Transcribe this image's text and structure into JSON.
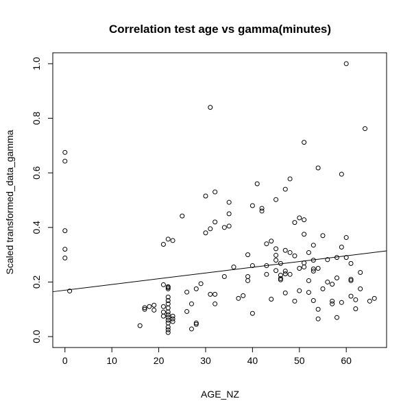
{
  "chart_data": {
    "type": "scatter",
    "title": "Correlation test age vs gamma(minutes)",
    "xlabel": "AGE_NZ",
    "ylabel": "Scaled transformed_data_gamma",
    "xlim": [
      -2.6,
      68.6
    ],
    "ylim": [
      -0.04,
      1.04
    ],
    "x_ticks": [
      0,
      10,
      20,
      30,
      40,
      50,
      60
    ],
    "y_ticks": [
      0.0,
      0.2,
      0.4,
      0.6,
      0.8,
      1.0
    ],
    "y_tick_labels": [
      "0.0",
      "0.2",
      "0.4",
      "0.6",
      "0.8",
      "1.0"
    ],
    "grid": false,
    "point_shape": "open-circle",
    "regression_line": {
      "intercept": 0.17,
      "slope": 0.0021
    },
    "points": [
      [
        0,
        0.675
      ],
      [
        0,
        0.643
      ],
      [
        0,
        0.388
      ],
      [
        0,
        0.32
      ],
      [
        0,
        0.288
      ],
      [
        1,
        0.167
      ],
      [
        16,
        0.04
      ],
      [
        17,
        0.106
      ],
      [
        17,
        0.1
      ],
      [
        18,
        0.11
      ],
      [
        19,
        0.115
      ],
      [
        19,
        0.097
      ],
      [
        21,
        0.338
      ],
      [
        21,
        0.19
      ],
      [
        21,
        0.11
      ],
      [
        21,
        0.09
      ],
      [
        21,
        0.075
      ],
      [
        22,
        0.357
      ],
      [
        22,
        0.183
      ],
      [
        22,
        0.18
      ],
      [
        22,
        0.175
      ],
      [
        22,
        0.145
      ],
      [
        22,
        0.132
      ],
      [
        22,
        0.12
      ],
      [
        22,
        0.105
      ],
      [
        22,
        0.09
      ],
      [
        22,
        0.08
      ],
      [
        22,
        0.07
      ],
      [
        22,
        0.06
      ],
      [
        22,
        0.05
      ],
      [
        22,
        0.035
      ],
      [
        22,
        0.025
      ],
      [
        22,
        0.015
      ],
      [
        23,
        0.352
      ],
      [
        23,
        0.075
      ],
      [
        23,
        0.065
      ],
      [
        23,
        0.055
      ],
      [
        25,
        0.442
      ],
      [
        26,
        0.163
      ],
      [
        26,
        0.092
      ],
      [
        27,
        0.12
      ],
      [
        27,
        0.028
      ],
      [
        28,
        0.175
      ],
      [
        28,
        0.05
      ],
      [
        28,
        0.045
      ],
      [
        29,
        0.194
      ],
      [
        30,
        0.515
      ],
      [
        30,
        0.38
      ],
      [
        31,
        0.84
      ],
      [
        31,
        0.395
      ],
      [
        31,
        0.155
      ],
      [
        32,
        0.53
      ],
      [
        32,
        0.42
      ],
      [
        32,
        0.155
      ],
      [
        32,
        0.12
      ],
      [
        34,
        0.4
      ],
      [
        34,
        0.22
      ],
      [
        35,
        0.492
      ],
      [
        35,
        0.45
      ],
      [
        35,
        0.405
      ],
      [
        36,
        0.255
      ],
      [
        37,
        0.14
      ],
      [
        38,
        0.15
      ],
      [
        39,
        0.3
      ],
      [
        39,
        0.22
      ],
      [
        39,
        0.205
      ],
      [
        40,
        0.48
      ],
      [
        40,
        0.26
      ],
      [
        40,
        0.085
      ],
      [
        41,
        0.56
      ],
      [
        42,
        0.47
      ],
      [
        42,
        0.46
      ],
      [
        43,
        0.34
      ],
      [
        43,
        0.26
      ],
      [
        43,
        0.228
      ],
      [
        44,
        0.35
      ],
      [
        44,
        0.137
      ],
      [
        45,
        0.502
      ],
      [
        45,
        0.322
      ],
      [
        45,
        0.298
      ],
      [
        45,
        0.28
      ],
      [
        45,
        0.242
      ],
      [
        46,
        0.268
      ],
      [
        46,
        0.225
      ],
      [
        46,
        0.213
      ],
      [
        46,
        0.208
      ],
      [
        47,
        0.54
      ],
      [
        47,
        0.316
      ],
      [
        47,
        0.24
      ],
      [
        47,
        0.23
      ],
      [
        47,
        0.16
      ],
      [
        48,
        0.578
      ],
      [
        48,
        0.308
      ],
      [
        48,
        0.228
      ],
      [
        49,
        0.418
      ],
      [
        49,
        0.296
      ],
      [
        49,
        0.13
      ],
      [
        50,
        0.435
      ],
      [
        50,
        0.25
      ],
      [
        50,
        0.168
      ],
      [
        51,
        0.712
      ],
      [
        51,
        0.428
      ],
      [
        51,
        0.375
      ],
      [
        51,
        0.27
      ],
      [
        51,
        0.255
      ],
      [
        52,
        0.308
      ],
      [
        52,
        0.205
      ],
      [
        52,
        0.162
      ],
      [
        53,
        0.335
      ],
      [
        53,
        0.28
      ],
      [
        53,
        0.248
      ],
      [
        53,
        0.24
      ],
      [
        53,
        0.132
      ],
      [
        54,
        0.618
      ],
      [
        54,
        0.25
      ],
      [
        54,
        0.1
      ],
      [
        54,
        0.065
      ],
      [
        55,
        0.37
      ],
      [
        55,
        0.175
      ],
      [
        56,
        0.282
      ],
      [
        56,
        0.2
      ],
      [
        57,
        0.192
      ],
      [
        57,
        0.13
      ],
      [
        57,
        0.12
      ],
      [
        58,
        0.29
      ],
      [
        58,
        0.215
      ],
      [
        58,
        0.07
      ],
      [
        59,
        0.595
      ],
      [
        59,
        0.328
      ],
      [
        59,
        0.125
      ],
      [
        60,
        1.0
      ],
      [
        60,
        0.363
      ],
      [
        60,
        0.29
      ],
      [
        61,
        0.268
      ],
      [
        61,
        0.21
      ],
      [
        61,
        0.205
      ],
      [
        61,
        0.148
      ],
      [
        62,
        0.135
      ],
      [
        62,
        0.102
      ],
      [
        63,
        0.235
      ],
      [
        63,
        0.175
      ],
      [
        64,
        0.762
      ],
      [
        65,
        0.13
      ],
      [
        66,
        0.14
      ]
    ]
  }
}
